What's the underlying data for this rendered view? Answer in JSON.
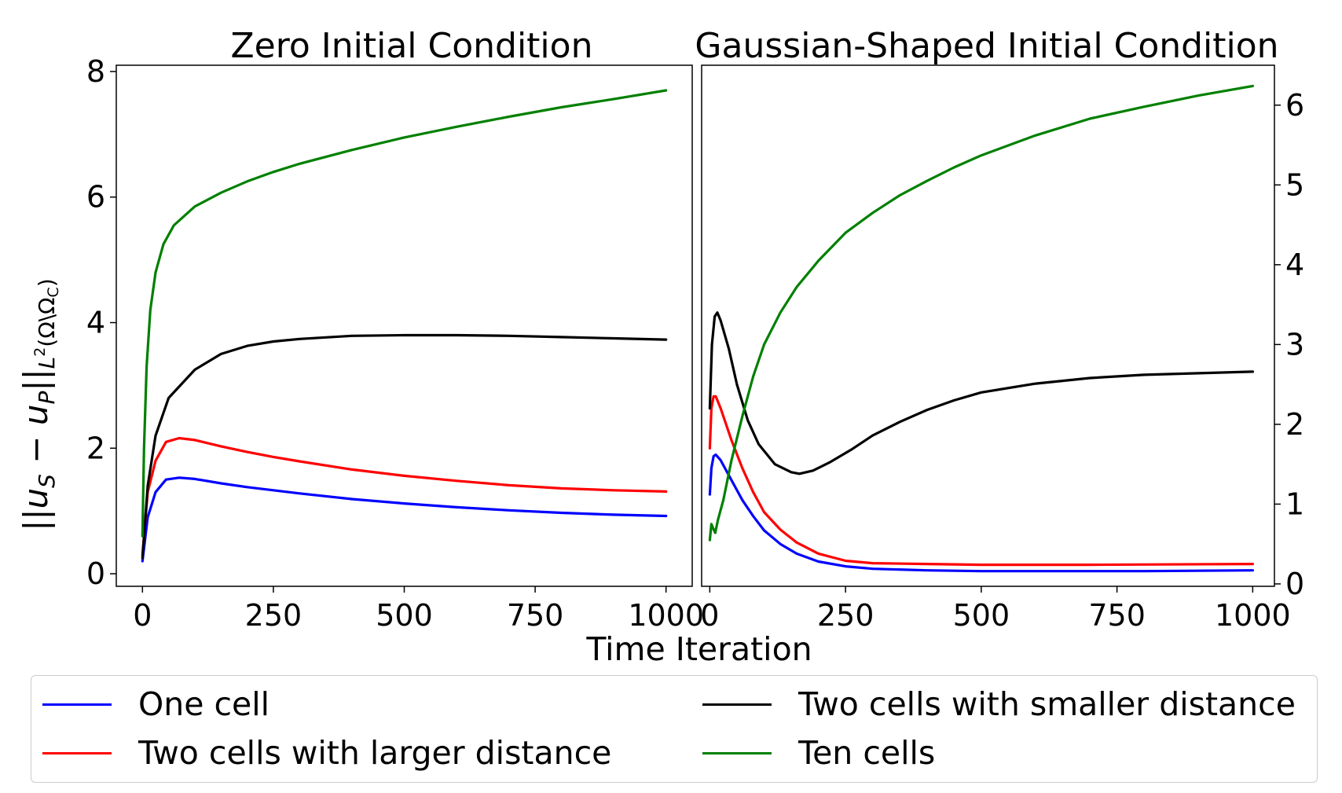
{
  "chart_data": [
    {
      "type": "line",
      "title": "Zero Initial Condition",
      "xlabel": "Time Iteration",
      "ylabel": "||u_S − u_P||_{L^2(Ω\\Ω_C)}",
      "ylabel_parts": {
        "norm_open": "||",
        "u": "u",
        "S": "S",
        "minus": " − ",
        "P": "P",
        "norm_close": "||",
        "sub": "L",
        "sup": "2",
        "domain": "(Ω\\Ω",
        "C": "C",
        "close": ")"
      },
      "xlim": [
        -50,
        1050
      ],
      "ylim": [
        -0.2,
        8.1
      ],
      "x_ticks": [
        0,
        250,
        500,
        750,
        1000
      ],
      "x_tick_labels": [
        "0",
        "250",
        "500",
        "750",
        "1000"
      ],
      "y_ticks": [
        0,
        2,
        4,
        6,
        8
      ],
      "y_tick_labels": [
        "0",
        "2",
        "4",
        "6",
        "8"
      ],
      "y_axis_side": "left",
      "series": [
        {
          "name": "One cell",
          "color": "#0000ff",
          "points": [
            [
              0,
              0.2
            ],
            [
              10,
              0.9
            ],
            [
              25,
              1.3
            ],
            [
              45,
              1.5
            ],
            [
              70,
              1.53
            ],
            [
              100,
              1.51
            ],
            [
              150,
              1.44
            ],
            [
              200,
              1.38
            ],
            [
              250,
              1.33
            ],
            [
              300,
              1.28
            ],
            [
              400,
              1.19
            ],
            [
              500,
              1.12
            ],
            [
              600,
              1.06
            ],
            [
              700,
              1.01
            ],
            [
              800,
              0.97
            ],
            [
              900,
              0.94
            ],
            [
              1000,
              0.92
            ]
          ]
        },
        {
          "name": "Two cells with larger distance",
          "color": "#ff0000",
          "points": [
            [
              0,
              0.3
            ],
            [
              10,
              1.3
            ],
            [
              25,
              1.8
            ],
            [
              45,
              2.1
            ],
            [
              70,
              2.16
            ],
            [
              100,
              2.13
            ],
            [
              150,
              2.03
            ],
            [
              200,
              1.94
            ],
            [
              250,
              1.86
            ],
            [
              300,
              1.79
            ],
            [
              400,
              1.66
            ],
            [
              500,
              1.56
            ],
            [
              600,
              1.48
            ],
            [
              700,
              1.41
            ],
            [
              800,
              1.36
            ],
            [
              900,
              1.33
            ],
            [
              1000,
              1.31
            ]
          ]
        },
        {
          "name": "Two cells with smaller distance",
          "color": "#000000",
          "points": [
            [
              0,
              0.25
            ],
            [
              10,
              1.4
            ],
            [
              25,
              2.2
            ],
            [
              50,
              2.8
            ],
            [
              100,
              3.25
            ],
            [
              150,
              3.5
            ],
            [
              200,
              3.63
            ],
            [
              250,
              3.7
            ],
            [
              300,
              3.74
            ],
            [
              400,
              3.79
            ],
            [
              500,
              3.8
            ],
            [
              600,
              3.8
            ],
            [
              700,
              3.79
            ],
            [
              800,
              3.77
            ],
            [
              900,
              3.75
            ],
            [
              1000,
              3.73
            ]
          ]
        },
        {
          "name": "Ten cells",
          "color": "#008000",
          "points": [
            [
              0,
              0.6
            ],
            [
              3,
              2.0
            ],
            [
              8,
              3.3
            ],
            [
              15,
              4.2
            ],
            [
              25,
              4.8
            ],
            [
              40,
              5.25
            ],
            [
              60,
              5.55
            ],
            [
              100,
              5.85
            ],
            [
              150,
              6.07
            ],
            [
              200,
              6.25
            ],
            [
              250,
              6.4
            ],
            [
              300,
              6.53
            ],
            [
              400,
              6.75
            ],
            [
              500,
              6.95
            ],
            [
              600,
              7.12
            ],
            [
              700,
              7.28
            ],
            [
              800,
              7.43
            ],
            [
              900,
              7.56
            ],
            [
              1000,
              7.7
            ]
          ]
        }
      ]
    },
    {
      "type": "line",
      "title": "Gaussian-Shaped Initial Condition",
      "xlabel": "Time Iteration",
      "xlim": [
        -15,
        1040
      ],
      "ylim": [
        -0.03,
        6.5
      ],
      "x_ticks": [
        0,
        250,
        500,
        750,
        1000
      ],
      "x_tick_labels": [
        "0",
        "250",
        "500",
        "750",
        "1000"
      ],
      "y_ticks": [
        0,
        1,
        2,
        3,
        4,
        5,
        6
      ],
      "y_tick_labels": [
        "0",
        "1",
        "2",
        "3",
        "4",
        "5",
        "6"
      ],
      "y_axis_side": "right",
      "series": [
        {
          "name": "One cell",
          "color": "#0000ff",
          "points": [
            [
              0,
              1.12
            ],
            [
              3,
              1.45
            ],
            [
              7,
              1.6
            ],
            [
              11,
              1.62
            ],
            [
              20,
              1.55
            ],
            [
              40,
              1.3
            ],
            [
              60,
              1.05
            ],
            [
              80,
              0.85
            ],
            [
              100,
              0.67
            ],
            [
              130,
              0.5
            ],
            [
              160,
              0.38
            ],
            [
              200,
              0.28
            ],
            [
              250,
              0.22
            ],
            [
              300,
              0.19
            ],
            [
              400,
              0.17
            ],
            [
              500,
              0.16
            ],
            [
              600,
              0.16
            ],
            [
              800,
              0.16
            ],
            [
              1000,
              0.17
            ]
          ]
        },
        {
          "name": "Two cells with larger distance",
          "color": "#ff0000",
          "points": [
            [
              0,
              1.7
            ],
            [
              3,
              2.2
            ],
            [
              7,
              2.35
            ],
            [
              11,
              2.35
            ],
            [
              20,
              2.2
            ],
            [
              40,
              1.8
            ],
            [
              60,
              1.45
            ],
            [
              80,
              1.15
            ],
            [
              100,
              0.9
            ],
            [
              130,
              0.68
            ],
            [
              160,
              0.52
            ],
            [
              200,
              0.38
            ],
            [
              250,
              0.29
            ],
            [
              300,
              0.26
            ],
            [
              400,
              0.25
            ],
            [
              500,
              0.24
            ],
            [
              700,
              0.24
            ],
            [
              1000,
              0.25
            ]
          ]
        },
        {
          "name": "Two cells with smaller distance",
          "color": "#000000",
          "points": [
            [
              0,
              2.2
            ],
            [
              4,
              3.0
            ],
            [
              9,
              3.35
            ],
            [
              14,
              3.4
            ],
            [
              20,
              3.3
            ],
            [
              35,
              2.95
            ],
            [
              50,
              2.5
            ],
            [
              70,
              2.05
            ],
            [
              90,
              1.75
            ],
            [
              120,
              1.5
            ],
            [
              150,
              1.4
            ],
            [
              165,
              1.38
            ],
            [
              190,
              1.42
            ],
            [
              220,
              1.52
            ],
            [
              260,
              1.68
            ],
            [
              300,
              1.86
            ],
            [
              350,
              2.03
            ],
            [
              400,
              2.18
            ],
            [
              450,
              2.3
            ],
            [
              500,
              2.4
            ],
            [
              600,
              2.51
            ],
            [
              700,
              2.58
            ],
            [
              800,
              2.62
            ],
            [
              900,
              2.64
            ],
            [
              1000,
              2.66
            ]
          ]
        },
        {
          "name": "Ten cells",
          "color": "#008000",
          "points": [
            [
              0,
              0.55
            ],
            [
              3,
              0.75
            ],
            [
              6,
              0.7
            ],
            [
              10,
              0.64
            ],
            [
              15,
              0.8
            ],
            [
              25,
              1.05
            ],
            [
              40,
              1.55
            ],
            [
              60,
              2.1
            ],
            [
              80,
              2.6
            ],
            [
              100,
              3.0
            ],
            [
              130,
              3.4
            ],
            [
              160,
              3.72
            ],
            [
              200,
              4.05
            ],
            [
              250,
              4.4
            ],
            [
              300,
              4.65
            ],
            [
              350,
              4.87
            ],
            [
              400,
              5.05
            ],
            [
              450,
              5.22
            ],
            [
              500,
              5.37
            ],
            [
              600,
              5.62
            ],
            [
              700,
              5.83
            ],
            [
              800,
              5.98
            ],
            [
              900,
              6.12
            ],
            [
              1000,
              6.24
            ]
          ]
        }
      ]
    }
  ],
  "legend": {
    "entries": [
      {
        "label": "One cell",
        "color": "#0000ff"
      },
      {
        "label": "Two cells with larger distance",
        "color": "#ff0000"
      },
      {
        "label": "Two cells with smaller distance",
        "color": "#000000"
      },
      {
        "label": "Ten cells",
        "color": "#008000"
      }
    ]
  }
}
